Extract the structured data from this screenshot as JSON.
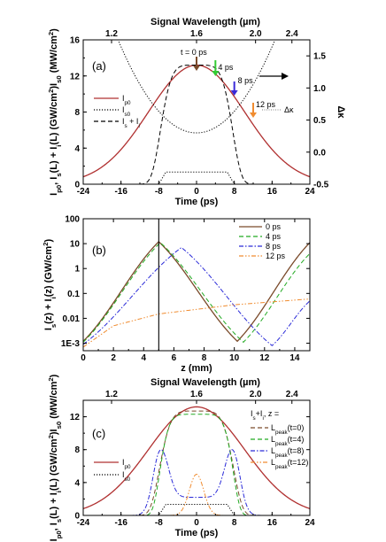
{
  "chart_data": [
    {
      "type": "line",
      "panel_label": "(a)",
      "xlabel": "Time (ps)",
      "xlim": [
        -24,
        24
      ],
      "xticks": [
        -24,
        -16,
        -8,
        0,
        8,
        16,
        24
      ],
      "top_xlabel": "Signal Wavelength (µm)",
      "top_xticks": [
        {
          "label": "1.2",
          "t": -18
        },
        {
          "label": "1.6",
          "t": 0
        },
        {
          "label": "2.0",
          "t": 12.5
        },
        {
          "label": "2.4",
          "t": 20.2
        }
      ],
      "ylabel": "Ip0, Is(L) + Ii(L) (GW/cm2), Is0 (MW/cm2)",
      "ylabel_parts": [
        "I",
        "p0",
        ", I",
        "s",
        "(L) + I",
        "i",
        "(L) (GW/cm",
        "2",
        ")",
        "I",
        "s0",
        " (MW/cm",
        "2",
        ")"
      ],
      "ylim": [
        0,
        16
      ],
      "yticks": [
        0,
        4,
        8,
        12,
        16
      ],
      "y2label": "Δκ",
      "y2lim": [
        -0.5,
        1.75
      ],
      "y2ticks": [
        -0.5,
        0.0,
        0.5,
        1.0,
        1.5
      ],
      "y2ticklabels": [
        "-0.5",
        "0.0",
        "0.5",
        "1.0",
        "1.5"
      ],
      "series": [
        {
          "name": "Ip0",
          "name_parts": [
            "I",
            "p0"
          ],
          "style": "solid",
          "color": "#b03030",
          "kind": "gaussian",
          "amp": 13.2,
          "center": 0,
          "fwhm": 24
        },
        {
          "name": "Is0",
          "name_parts": [
            "I",
            "s0"
          ],
          "style": "dotted",
          "color": "#000000",
          "kind": "flattop",
          "amp": 1.35,
          "half_width": 6.5,
          "edge": 0.5
        },
        {
          "name": "Is + Ii",
          "name_parts": [
            "I",
            "s",
            " + I",
            "i"
          ],
          "style": "dashed",
          "color": "#000000",
          "kind": "supergaussian",
          "amp": 13.2,
          "half_width": 8,
          "order": 2.6
        },
        {
          "name": "Δκ",
          "name_parts": [
            "Δκ"
          ],
          "style": "dotted",
          "color": "#000000",
          "kind": "dk",
          "axis": "y2"
        }
      ],
      "arrows": [
        {
          "label": "t = 0 ps",
          "t": 0,
          "color": "#7a4a2a"
        },
        {
          "label": "4 ps",
          "t": 4,
          "color": "#33cc33"
        },
        {
          "label": "8 ps",
          "t": 8,
          "color": "#3a2ad8"
        },
        {
          "label": "12 ps",
          "t": 12,
          "color": "#f08c30"
        }
      ],
      "dk_annotation": "Δκ"
    },
    {
      "type": "line",
      "panel_label": "(b)",
      "xlabel": "z (mm)",
      "xlim": [
        0,
        15
      ],
      "xticks": [
        0,
        2,
        4,
        6,
        8,
        10,
        12,
        14
      ],
      "ylabel": "Is(z) + Ii(z) (GW/cm2)",
      "ylabel_parts": [
        "I",
        "s",
        "(z) + I",
        "i",
        "(z) (GW/cm",
        "2",
        ")"
      ],
      "yscale": "log",
      "ylim": [
        0.0005,
        100
      ],
      "yticks": [
        0.001,
        0.01,
        0.1,
        1,
        10,
        100
      ],
      "yticklabels": [
        "1E-3",
        "0.01",
        "0.1",
        "1",
        "10",
        "100"
      ],
      "vline_z": 5,
      "series": [
        {
          "name": "0 ps",
          "style": "solid",
          "color": "#7a4a2a",
          "z": [
            0,
            5,
            10.2,
            15
          ],
          "y": [
            0.0012,
            12,
            0.0012,
            11
          ]
        },
        {
          "name": "4 ps",
          "style": "dashed",
          "color": "#22aa22",
          "z": [
            0,
            5.1,
            10.6,
            15
          ],
          "y": [
            0.0011,
            11,
            0.0011,
            4
          ]
        },
        {
          "name": "8 ps",
          "style": "dashdot",
          "color": "#2a2ad8",
          "z": [
            0,
            6.5,
            12.5,
            15
          ],
          "y": [
            0.0009,
            7,
            0.0008,
            0.05
          ]
        },
        {
          "name": "12 ps",
          "style": "dashdotdot",
          "color": "#f08c30",
          "z": [
            0,
            2,
            5,
            10,
            15
          ],
          "y": [
            0.0007,
            0.005,
            0.015,
            0.035,
            0.06
          ]
        }
      ]
    },
    {
      "type": "line",
      "panel_label": "(c)",
      "xlabel": "Time (ps)",
      "xlim": [
        -24,
        24
      ],
      "xticks": [
        -24,
        -16,
        -8,
        0,
        8,
        16,
        24
      ],
      "top_xlabel": "Signal Wavelength (µm)",
      "top_xticks": [
        {
          "label": "1.2",
          "t": -18
        },
        {
          "label": "1.6",
          "t": 0
        },
        {
          "label": "2.0",
          "t": 12.5
        },
        {
          "label": "2.4",
          "t": 20.2
        }
      ],
      "ylabel": "Ip0, Is(L) + Ii(L) (GW/cm2), Is0 (MW/cm2)",
      "ylabel_parts": [
        "I",
        "p0",
        ", I",
        "s",
        "(L) + I",
        "i",
        "(L) (GW/cm",
        "2",
        ")",
        "I",
        "s0",
        " (MW/cm",
        "2",
        ")"
      ],
      "ylim": [
        0,
        14
      ],
      "yticks": [
        0,
        4,
        8,
        12
      ],
      "legend_header_parts": [
        "I",
        "s",
        "+I",
        "i",
        ",  z ="
      ],
      "series": [
        {
          "name": "Ip0",
          "name_parts": [
            "I",
            "p0"
          ],
          "style": "solid",
          "color": "#b03030",
          "kind": "gaussian",
          "amp": 13.2,
          "center": 0,
          "fwhm": 24
        },
        {
          "name": "Is0",
          "name_parts": [
            "I",
            "s0"
          ],
          "style": "dotted",
          "color": "#000000",
          "kind": "flattop",
          "amp": 1.35,
          "half_width": 6.5,
          "edge": 0.5
        },
        {
          "name": "Lpeak(t=0)",
          "name_parts": [
            "L",
            "peak",
            "(t=0)"
          ],
          "style": "dashed",
          "color": "#7a4a2a",
          "kind": "supergaussian",
          "amp": 12.7,
          "half_width": 8.2,
          "order": 2.6
        },
        {
          "name": "Lpeak(t=4)",
          "name_parts": [
            "L",
            "peak",
            "(t=4)"
          ],
          "style": "dashed",
          "color": "#22aa22",
          "kind": "supergaussian",
          "amp": 12.3,
          "half_width": 8.0,
          "order": 3.2
        },
        {
          "name": "Lpeak(t=8)",
          "name_parts": [
            "L",
            "peak",
            "(t=8)"
          ],
          "style": "dashdot",
          "color": "#2a2ad8",
          "kind": "twohump",
          "amp": 8.0,
          "center": 7.5,
          "width": 1.6,
          "mid": 2.2
        },
        {
          "name": "Lpeak(t=12)",
          "name_parts": [
            "L",
            "peak",
            "(t=12)"
          ],
          "style": "dashdotdot",
          "color": "#f08c30",
          "kind": "gaussian",
          "amp": 5.0,
          "center": 0,
          "fwhm": 3.6
        }
      ]
    }
  ]
}
